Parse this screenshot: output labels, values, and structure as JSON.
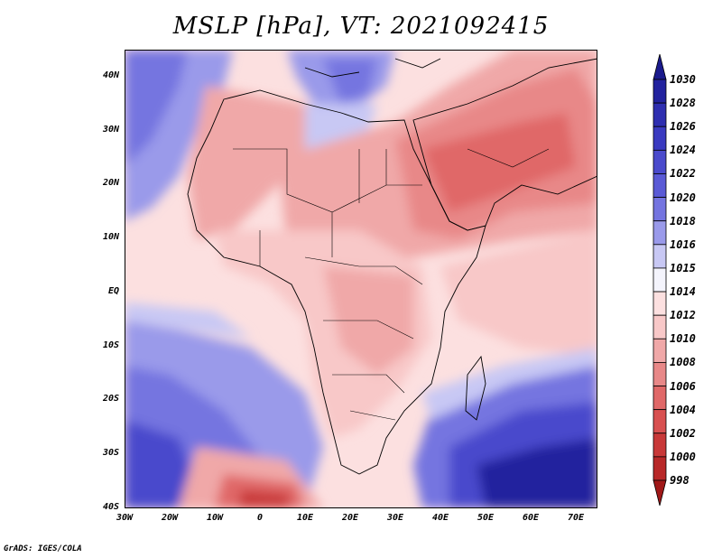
{
  "title": "MSLP [hPa], VT: 2021092415",
  "credit": "GrADS: IGES/COLA",
  "lat_labels": [
    "40N",
    "30N",
    "20N",
    "10N",
    "EQ",
    "10S",
    "20S",
    "30S",
    "40S"
  ],
  "lon_labels": [
    "30W",
    "20W",
    "10W",
    "0",
    "10E",
    "20E",
    "30E",
    "40E",
    "50E",
    "60E",
    "70E"
  ],
  "colorbar": {
    "levels": [
      "1030",
      "1028",
      "1026",
      "1024",
      "1022",
      "1020",
      "1018",
      "1016",
      "1015",
      "1014",
      "1012",
      "1010",
      "1008",
      "1006",
      "1004",
      "1002",
      "1000",
      "998"
    ],
    "colors": [
      "#1a1a8c",
      "#22229e",
      "#2e2eb0",
      "#3a3ac0",
      "#4a4acc",
      "#5a5ad6",
      "#7474e0",
      "#9a9aea",
      "#c8c8f4",
      "#f4f4fc",
      "#fce0e0",
      "#f8c8c8",
      "#f0a8a8",
      "#e88888",
      "#e06868",
      "#d85050",
      "#c83838",
      "#b82828",
      "#a01818"
    ]
  },
  "map": {
    "projection": "lat-lon",
    "extent": {
      "lon_min": -30,
      "lon_max": 75,
      "lat_min": -40,
      "lat_max": 45
    },
    "variable": "mean sea level pressure (hPa)"
  }
}
